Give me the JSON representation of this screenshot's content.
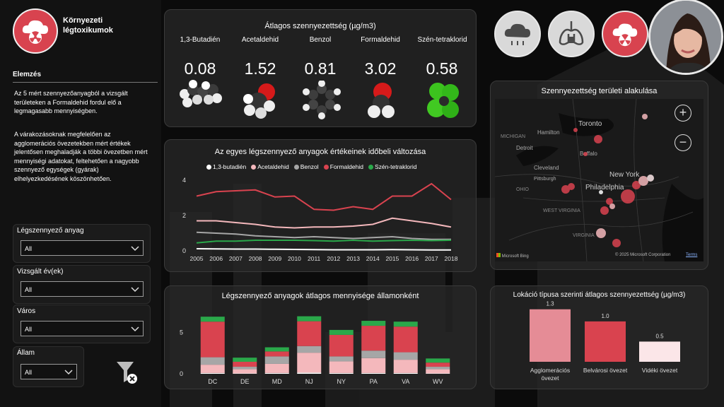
{
  "app": {
    "title_line1": "Környezeti",
    "title_line2": "légtoxikumok"
  },
  "sidebar": {
    "section_title": "Elemzés",
    "paragraph1": "Az 5 mért szennyezőanyagból a vizsgált területeken a Formaldehid fordul elő a legmagasabb mennyiségben.",
    "paragraph2": "A várakozásoknak megfelelően az agglomerációs övezetekben mért értékek jelentősen meghaladják a többi övezetben mért mennyiségi adatokat, feltehetően a nagyobb szennyező egységek (gyárak) elhelyezkedésének köszönhetően.",
    "filters": [
      {
        "label": "Légszennyező anyag",
        "value": "All"
      },
      {
        "label": "Vizsgált év(ek)",
        "value": "All"
      },
      {
        "label": "Város",
        "value": "All"
      },
      {
        "label": "Állam",
        "value": "All"
      }
    ],
    "clear_filters_icon": "filter-clear-icon"
  },
  "cards": {
    "title": "Átlagos szennyezettség (µg/m3)",
    "items": [
      {
        "name": "1,3-Butadién",
        "value": "0.08",
        "molecule": "butadiene-molecule-icon"
      },
      {
        "name": "Acetaldehid",
        "value": "1.52",
        "molecule": "acetaldehyde-molecule-icon"
      },
      {
        "name": "Benzol",
        "value": "0.81",
        "molecule": "benzene-molecule-icon"
      },
      {
        "name": "Formaldehid",
        "value": "3.02",
        "molecule": "formaldehyde-molecule-icon"
      },
      {
        "name": "Szén-tetraklorid",
        "value": "0.58",
        "molecule": "carbon-tetrachloride-molecule-icon"
      }
    ]
  },
  "top_icons": [
    "radiation-cloud-icon",
    "lungs-lock-icon",
    "radiation-cloud-icon",
    "avatar-photo"
  ],
  "map": {
    "title": "Szennyezettség területi alakulása",
    "labels": [
      "MICHIGAN",
      "Hamilton",
      "Toronto",
      "Detroit",
      "Buffalo",
      "Cleveland",
      "OHIO",
      "New York",
      "Philadelphia",
      "WEST VIRGINIA",
      "VIRGINIA",
      "Pittsburgh"
    ],
    "attribution": "© 2025 Microsoft Corporation",
    "terms": "Terms",
    "provider": "Microsoft Bing",
    "zoom_in": "+",
    "zoom_out": "−"
  },
  "colors": {
    "butadiene": "#ffffff",
    "acetaldehyde": "#f4b8bc",
    "benzene": "#a6a6a6",
    "formaldehyde": "#d9434f",
    "carbon_tetrachloride": "#2aa84a"
  },
  "chart_data": [
    {
      "type": "line",
      "title": "Az egyes légszennyező anyagok értékeinek időbeli változása",
      "x": [
        "2005",
        "2006",
        "2007",
        "2008",
        "2009",
        "2010",
        "2011",
        "2012",
        "2013",
        "2014",
        "2015",
        "2016",
        "2017",
        "2018"
      ],
      "ylim": [
        0,
        4
      ],
      "yticks": [
        0,
        2,
        4
      ],
      "legend": "top",
      "series": [
        {
          "name": "1,3-butadién",
          "color": "#ffffff",
          "values": [
            0.12,
            0.11,
            0.1,
            0.1,
            0.09,
            0.08,
            0.07,
            0.06,
            0.06,
            0.06,
            0.07,
            0.06,
            0.05,
            0.05
          ]
        },
        {
          "name": "Acetaldehid",
          "color": "#f4b8bc",
          "values": [
            1.7,
            1.7,
            1.6,
            1.5,
            1.35,
            1.3,
            1.35,
            1.35,
            1.4,
            1.5,
            1.85,
            1.7,
            1.55,
            1.35
          ]
        },
        {
          "name": "Benzol",
          "color": "#a6a6a6",
          "values": [
            1.05,
            1.0,
            0.95,
            0.85,
            0.8,
            0.75,
            0.8,
            0.75,
            0.7,
            0.75,
            0.8,
            0.7,
            0.65,
            0.65
          ]
        },
        {
          "name": "Formaldehid",
          "color": "#d9434f",
          "values": [
            3.1,
            3.35,
            3.4,
            3.45,
            3.05,
            3.1,
            2.35,
            2.3,
            2.5,
            2.35,
            3.1,
            3.1,
            3.8,
            2.9
          ]
        },
        {
          "name": "Szén-tetraklorid",
          "color": "#2aa84a",
          "values": [
            0.45,
            0.55,
            0.55,
            0.6,
            0.6,
            0.6,
            0.58,
            0.55,
            0.6,
            0.55,
            0.58,
            0.6,
            0.58,
            0.6
          ]
        }
      ]
    },
    {
      "type": "bar",
      "stacked": true,
      "title": "Légszennyező anyagok átlagos mennyisége államonként",
      "categories": [
        "DC",
        "DE",
        "MD",
        "NJ",
        "NY",
        "PA",
        "VA",
        "WV"
      ],
      "ylim": [
        0,
        7
      ],
      "yticks": [
        0,
        5
      ],
      "series": [
        {
          "name": "1,3-butadién",
          "color": "#ffffff",
          "values": [
            0.1,
            0.05,
            0.1,
            0.15,
            0.1,
            0.1,
            0.1,
            0.05
          ]
        },
        {
          "name": "Acetaldehid",
          "color": "#f4b8bc",
          "values": [
            1.0,
            0.5,
            1.1,
            2.4,
            1.4,
            1.8,
            1.6,
            0.5
          ]
        },
        {
          "name": "Benzol",
          "color": "#a6a6a6",
          "values": [
            0.9,
            0.3,
            0.9,
            0.8,
            0.6,
            0.9,
            0.9,
            0.3
          ]
        },
        {
          "name": "Formaldehid",
          "color": "#d9434f",
          "values": [
            4.3,
            0.6,
            0.6,
            3.0,
            2.6,
            3.0,
            3.1,
            0.5
          ]
        },
        {
          "name": "Szén-tetraklorid",
          "color": "#2aa84a",
          "values": [
            0.6,
            0.5,
            0.5,
            0.6,
            0.6,
            0.6,
            0.6,
            0.5
          ]
        }
      ]
    },
    {
      "type": "bar",
      "title": "Lokáció típusa szerinti átlagos szennyezettség (µg/m3)",
      "categories": [
        "Agglomerációs övezet",
        "Belvárosi övezet",
        "Vidéki övezet"
      ],
      "category_lines": [
        [
          "Agglomerációs",
          "övezet"
        ],
        [
          "Belvárosi övezet"
        ],
        [
          "Vidéki övezet"
        ]
      ],
      "values": [
        1.3,
        1.0,
        0.5
      ],
      "labels": [
        "1.3",
        "1.0",
        "0.5"
      ],
      "colors": [
        "#e58c96",
        "#d9434f",
        "#fbe6e8"
      ],
      "ylim": [
        0,
        1.4
      ]
    }
  ]
}
